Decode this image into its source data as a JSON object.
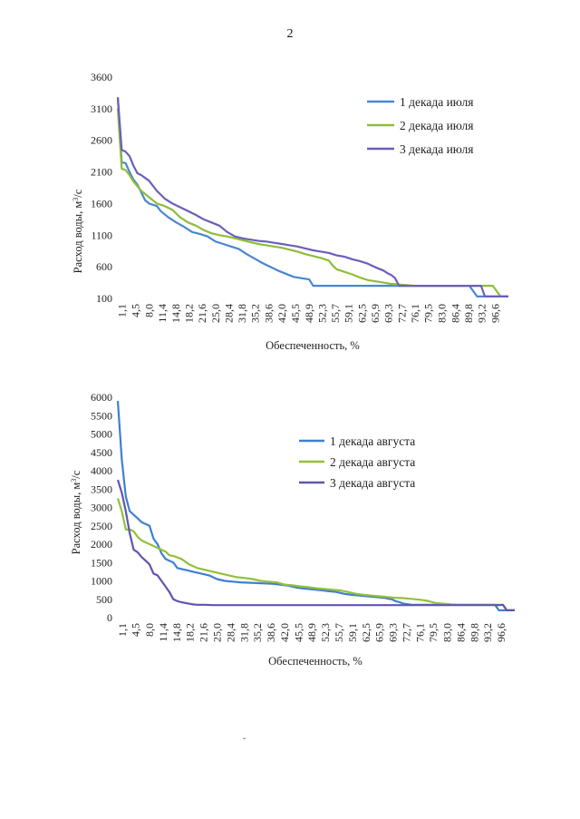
{
  "page": {
    "number": "2",
    "stray_mark": "ˇ"
  },
  "chart_data": [
    {
      "type": "line",
      "title": "",
      "xlabel": "Обеспеченность, %",
      "ylabel": "Расход воды, м³/с",
      "ylabel_main": "Расход воды, м",
      "ylabel_sup": "3",
      "ylabel_end": "/с",
      "ylim": [
        100,
        3600
      ],
      "yticks": [
        100,
        600,
        1100,
        1600,
        2100,
        2600,
        3100,
        3600
      ],
      "xlim": [
        0,
        100
      ],
      "x_tick_labels": [
        "1,1",
        "4,5",
        "8,0",
        "11,4",
        "14,8",
        "18,2",
        "21,6",
        "25,0",
        "28,4",
        "31,8",
        "35,2",
        "38,6",
        "42,0",
        "45,5",
        "48,9",
        "52,3",
        "55,7",
        "59,1",
        "62,5",
        "65,9",
        "69,3",
        "72,7",
        "76,1",
        "79,5",
        "83,0",
        "86,4",
        "89,8",
        "93,2",
        "96,6"
      ],
      "x_tick_values": [
        1.1,
        4.5,
        8.0,
        11.4,
        14.8,
        18.2,
        21.6,
        25.0,
        28.4,
        31.8,
        35.2,
        38.6,
        42.0,
        45.5,
        48.9,
        52.3,
        55.7,
        59.1,
        62.5,
        65.9,
        69.3,
        72.7,
        76.1,
        79.5,
        83.0,
        86.4,
        89.8,
        93.2,
        96.6
      ],
      "legend_position": "top-right",
      "series": [
        {
          "name": "1 декада июля",
          "color": "#4a86d0",
          "x": [
            0,
            1,
            2,
            3,
            4,
            5,
            7,
            8,
            9,
            10,
            11,
            13,
            15,
            17,
            19,
            21,
            23,
            25,
            27,
            29,
            31,
            33,
            35,
            37,
            39,
            41,
            43,
            45,
            47,
            49,
            50,
            52,
            54,
            56,
            58,
            60,
            62,
            64,
            66,
            68,
            70,
            72,
            74,
            76,
            78,
            80,
            82,
            84,
            86,
            88,
            90,
            92,
            94,
            96,
            98,
            100
          ],
          "y": [
            3280,
            2250,
            2240,
            2100,
            1980,
            1900,
            1650,
            1600,
            1580,
            1560,
            1480,
            1380,
            1300,
            1230,
            1150,
            1120,
            1080,
            1000,
            960,
            920,
            880,
            800,
            730,
            660,
            600,
            540,
            490,
            440,
            420,
            400,
            300,
            300,
            300,
            300,
            300,
            300,
            300,
            300,
            300,
            300,
            300,
            300,
            300,
            300,
            300,
            300,
            300,
            300,
            300,
            300,
            300,
            130,
            130,
            130,
            130,
            130
          ]
        },
        {
          "name": "2 декада июля",
          "color": "#8ebd3a",
          "x": [
            0,
            1,
            2,
            3,
            4,
            6,
            8,
            10,
            12,
            14,
            16,
            18,
            20,
            22,
            24,
            26,
            28,
            30,
            32,
            34,
            36,
            38,
            40,
            42,
            44,
            46,
            48,
            50,
            52,
            54,
            55,
            56,
            58,
            60,
            62,
            64,
            66,
            68,
            70,
            72,
            74,
            76,
            78,
            80,
            82,
            84,
            86,
            88,
            90,
            92,
            94,
            96,
            98,
            100
          ],
          "y": [
            3100,
            2150,
            2130,
            2050,
            1950,
            1800,
            1700,
            1600,
            1560,
            1500,
            1380,
            1300,
            1250,
            1180,
            1130,
            1100,
            1080,
            1050,
            1020,
            990,
            960,
            940,
            920,
            900,
            870,
            840,
            800,
            770,
            740,
            700,
            620,
            560,
            520,
            480,
            430,
            390,
            370,
            350,
            330,
            320,
            310,
            300,
            300,
            300,
            300,
            300,
            300,
            300,
            300,
            300,
            300,
            300,
            130,
            130
          ]
        },
        {
          "name": "3 декада июля",
          "color": "#6a5fb8",
          "x": [
            0,
            1,
            2,
            3,
            4,
            5,
            6,
            8,
            10,
            12,
            14,
            16,
            18,
            20,
            22,
            24,
            26,
            28,
            30,
            32,
            34,
            36,
            38,
            40,
            42,
            44,
            46,
            48,
            50,
            52,
            54,
            56,
            58,
            60,
            62,
            64,
            66,
            68,
            69,
            70,
            71,
            72,
            74,
            76,
            78,
            80,
            82,
            84,
            86,
            88,
            90,
            92,
            93,
            94,
            96,
            98,
            100
          ],
          "y": [
            3280,
            2450,
            2420,
            2350,
            2200,
            2080,
            2050,
            1960,
            1800,
            1680,
            1600,
            1540,
            1480,
            1420,
            1350,
            1300,
            1250,
            1150,
            1080,
            1050,
            1030,
            1010,
            1000,
            980,
            960,
            940,
            920,
            890,
            860,
            840,
            820,
            780,
            760,
            720,
            690,
            650,
            590,
            540,
            500,
            470,
            420,
            300,
            300,
            300,
            300,
            300,
            300,
            300,
            300,
            300,
            300,
            300,
            300,
            130,
            130,
            130,
            130
          ]
        }
      ]
    },
    {
      "type": "line",
      "title": "",
      "xlabel": "Обеспеченность, %",
      "ylabel": "Расход воды, м³/с",
      "ylabel_main": "Расход воды, м",
      "ylabel_sup": "3",
      "ylabel_end": "/с",
      "ylim": [
        0,
        6000
      ],
      "yticks": [
        0,
        500,
        1000,
        1500,
        2000,
        2500,
        3000,
        3500,
        4000,
        4500,
        5000,
        5500,
        6000
      ],
      "xlim": [
        0,
        100
      ],
      "x_tick_labels": [
        "1,1",
        "4,5",
        "8,0",
        "11,4",
        "14,8",
        "18,2",
        "21,6",
        "25,0",
        "28,4",
        "31,8",
        "35,2",
        "38,6",
        "42,0",
        "45,5",
        "48,9",
        "52,3",
        "55,7",
        "59,1",
        "62,5",
        "65,9",
        "69,3",
        "72,7",
        "76,1",
        "79,5",
        "83,0",
        "86,4",
        "89,8",
        "93,2",
        "96,6"
      ],
      "x_tick_values": [
        1.1,
        4.5,
        8.0,
        11.4,
        14.8,
        18.2,
        21.6,
        25.0,
        28.4,
        31.8,
        35.2,
        38.6,
        42.0,
        45.5,
        48.9,
        52.3,
        55.7,
        59.1,
        62.5,
        65.9,
        69.3,
        72.7,
        76.1,
        79.5,
        83.0,
        86.4,
        89.8,
        93.2,
        96.6
      ],
      "legend_position": "top-right",
      "series": [
        {
          "name": "1 декада августа",
          "color": "#3f7fd0",
          "x": [
            0,
            1,
            2,
            3,
            4,
            5,
            6,
            7,
            8,
            9,
            10,
            11,
            12,
            13,
            14,
            15,
            17,
            19,
            21,
            23,
            25,
            27,
            29,
            31,
            33,
            35,
            37,
            39,
            41,
            43,
            45,
            47,
            49,
            51,
            53,
            55,
            57,
            59,
            61,
            63,
            65,
            67,
            69,
            70,
            71,
            72,
            74,
            76,
            78,
            80,
            85,
            90,
            95,
            96,
            97,
            98,
            100
          ],
          "y": [
            5900,
            4300,
            3300,
            2900,
            2800,
            2700,
            2600,
            2550,
            2500,
            2150,
            2000,
            1750,
            1600,
            1550,
            1500,
            1350,
            1300,
            1250,
            1200,
            1150,
            1050,
            1000,
            980,
            960,
            950,
            940,
            930,
            920,
            900,
            870,
            820,
            790,
            770,
            750,
            720,
            700,
            650,
            620,
            600,
            580,
            560,
            540,
            500,
            450,
            420,
            380,
            350,
            350,
            350,
            350,
            350,
            350,
            350,
            200,
            200,
            200,
            200
          ]
        },
        {
          "name": "2 декада августа",
          "color": "#93c03a",
          "x": [
            0,
            1,
            2,
            3,
            4,
            5,
            6,
            7,
            8,
            9,
            10,
            11,
            12,
            13,
            14,
            16,
            18,
            20,
            22,
            24,
            26,
            28,
            30,
            32,
            34,
            36,
            38,
            40,
            42,
            44,
            46,
            48,
            50,
            52,
            54,
            56,
            58,
            60,
            62,
            64,
            66,
            68,
            70,
            72,
            74,
            76,
            78,
            80,
            82,
            84,
            86,
            88,
            90,
            95,
            96,
            97,
            98,
            100
          ],
          "y": [
            3250,
            2900,
            2400,
            2400,
            2350,
            2200,
            2100,
            2050,
            2000,
            1950,
            1900,
            1850,
            1800,
            1700,
            1680,
            1600,
            1450,
            1350,
            1300,
            1250,
            1200,
            1150,
            1100,
            1080,
            1050,
            1000,
            980,
            960,
            900,
            880,
            850,
            830,
            800,
            780,
            760,
            740,
            700,
            650,
            620,
            600,
            580,
            560,
            540,
            530,
            510,
            490,
            460,
            400,
            380,
            360,
            350,
            350,
            350,
            350,
            350,
            350,
            200,
            200
          ]
        },
        {
          "name": "3 декада августа",
          "color": "#5f55b0",
          "x": [
            0,
            1,
            2,
            3,
            4,
            5,
            6,
            7,
            8,
            9,
            10,
            11,
            12,
            13,
            14,
            15,
            16,
            17,
            18,
            19,
            20,
            22,
            24,
            26,
            28,
            30,
            40,
            50,
            60,
            70,
            80,
            90,
            96,
            97,
            98,
            100
          ],
          "y": [
            3750,
            3400,
            2900,
            2300,
            1850,
            1780,
            1650,
            1550,
            1450,
            1200,
            1150,
            1000,
            850,
            700,
            500,
            450,
            420,
            400,
            380,
            360,
            350,
            350,
            340,
            340,
            340,
            340,
            340,
            340,
            340,
            340,
            340,
            340,
            340,
            350,
            200,
            200
          ]
        }
      ]
    }
  ]
}
